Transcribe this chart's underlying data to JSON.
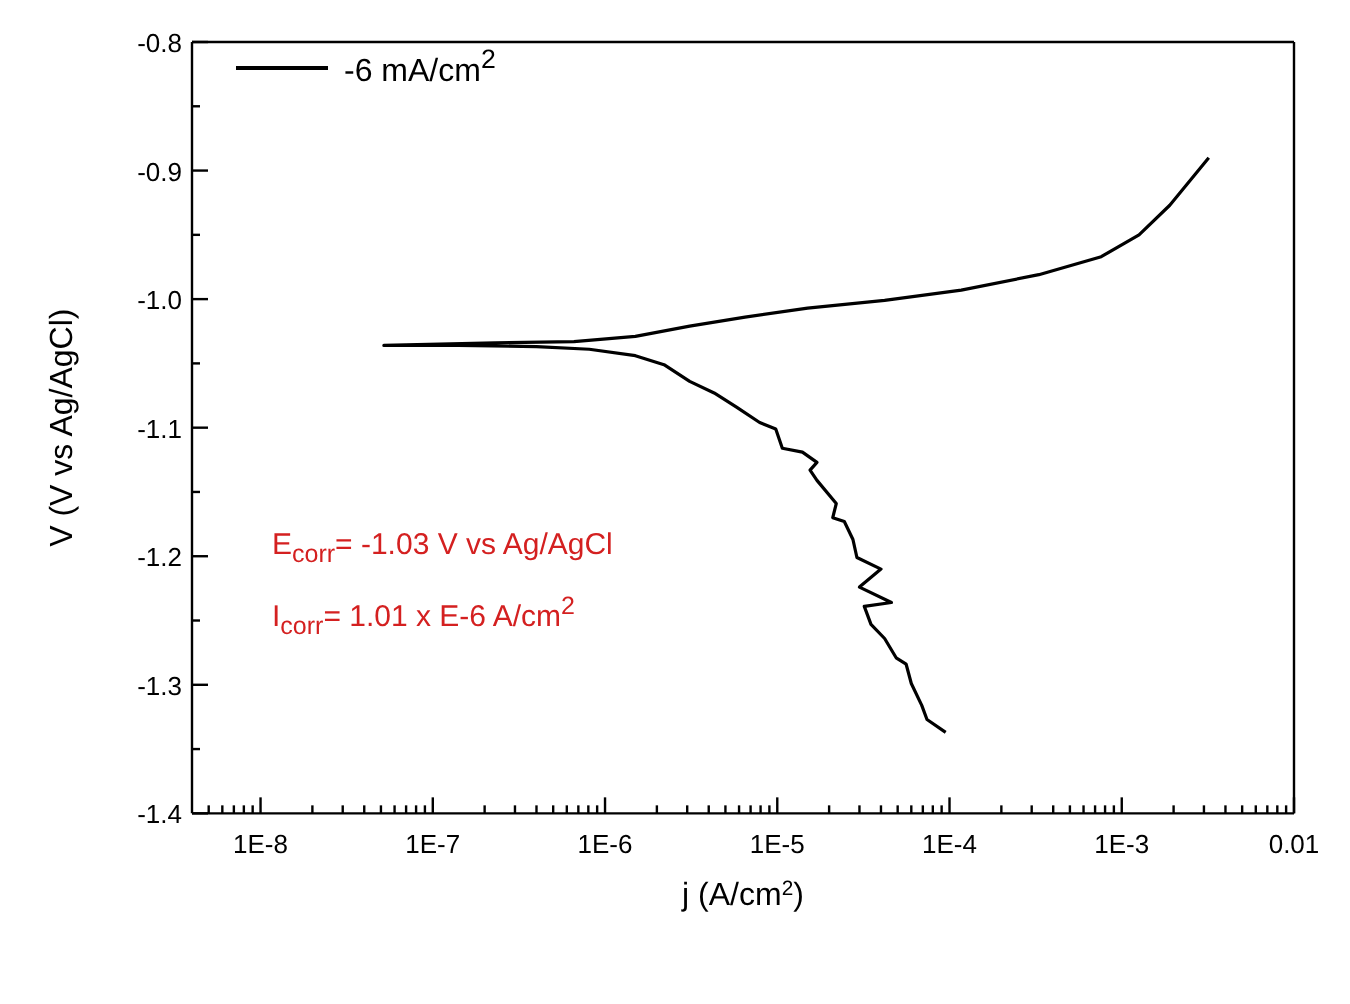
{
  "chart_data": {
    "type": "line",
    "xlabel": "j (A/cm$^{2}$)",
    "ylabel": "V (V vs Ag/AgCl)",
    "log": "x",
    "legend": "top left",
    "marker": "none",
    "line_style": "solid",
    "grid": false,
    "xlim": [
      4e-09,
      0.01
    ],
    "xticks": [
      {
        "value": 5e-09,
        "label": null
      },
      {
        "value": 6e-09,
        "label": null
      },
      {
        "value": 7e-09,
        "label": null
      },
      {
        "value": 8e-09,
        "label": null
      },
      {
        "value": 9e-09,
        "label": null
      },
      {
        "value": 1e-08,
        "label": "1E-8"
      },
      {
        "value": 2e-08,
        "label": null
      },
      {
        "value": 3e-08,
        "label": null
      },
      {
        "value": 4e-08,
        "label": null
      },
      {
        "value": 5e-08,
        "label": null
      },
      {
        "value": 6e-08,
        "label": null
      },
      {
        "value": 7e-08,
        "label": null
      },
      {
        "value": 8e-08,
        "label": null
      },
      {
        "value": 9e-08,
        "label": null
      },
      {
        "value": 1e-07,
        "label": "1E-7"
      },
      {
        "value": 2e-07,
        "label": null
      },
      {
        "value": 3e-07,
        "label": null
      },
      {
        "value": 4e-07,
        "label": null
      },
      {
        "value": 5e-07,
        "label": null
      },
      {
        "value": 6e-07,
        "label": null
      },
      {
        "value": 7e-07,
        "label": null
      },
      {
        "value": 8e-07,
        "label": null
      },
      {
        "value": 9e-07,
        "label": null
      },
      {
        "value": 1e-06,
        "label": "1E-6"
      },
      {
        "value": 2e-06,
        "label": null
      },
      {
        "value": 3e-06,
        "label": null
      },
      {
        "value": 4e-06,
        "label": null
      },
      {
        "value": 5e-06,
        "label": null
      },
      {
        "value": 6e-06,
        "label": null
      },
      {
        "value": 7e-06,
        "label": null
      },
      {
        "value": 8e-06,
        "label": null
      },
      {
        "value": 9e-06,
        "label": null
      },
      {
        "value": 1e-05,
        "label": "1E-5"
      },
      {
        "value": 2e-05,
        "label": null
      },
      {
        "value": 3e-05,
        "label": null
      },
      {
        "value": 4e-05,
        "label": null
      },
      {
        "value": 5e-05,
        "label": null
      },
      {
        "value": 6e-05,
        "label": null
      },
      {
        "value": 7e-05,
        "label": null
      },
      {
        "value": 8e-05,
        "label": null
      },
      {
        "value": 9e-05,
        "label": null
      },
      {
        "value": 0.0001,
        "label": "1E-4"
      },
      {
        "value": 0.0002,
        "label": null
      },
      {
        "value": 0.0003,
        "label": null
      },
      {
        "value": 0.0004,
        "label": null
      },
      {
        "value": 0.0005,
        "label": null
      },
      {
        "value": 0.0006,
        "label": null
      },
      {
        "value": 0.0007,
        "label": null
      },
      {
        "value": 0.0008,
        "label": null
      },
      {
        "value": 0.0009,
        "label": null
      },
      {
        "value": 0.001,
        "label": "1E-3"
      },
      {
        "value": 0.002,
        "label": null
      },
      {
        "value": 0.003,
        "label": null
      },
      {
        "value": 0.004,
        "label": null
      },
      {
        "value": 0.005,
        "label": null
      },
      {
        "value": 0.006,
        "label": null
      },
      {
        "value": 0.007,
        "label": null
      },
      {
        "value": 0.008,
        "label": null
      },
      {
        "value": 0.009,
        "label": null
      },
      0.01
    ],
    "ylim": [
      -1.4,
      -0.8
    ],
    "yticks": [
      -1.4,
      {
        "value": -1.35,
        "label": null
      },
      -1.3,
      {
        "value": -1.25,
        "label": null
      },
      -1.2,
      {
        "value": -1.15,
        "label": null
      },
      -1.1,
      {
        "value": -1.05,
        "label": null
      },
      {
        "value": -1.0,
        "label": "-1.0"
      },
      {
        "value": -0.95,
        "label": null
      },
      -0.9,
      {
        "value": -0.85,
        "label": null
      },
      -0.8
    ],
    "annotations": [
      "E$_{corr}$= -1.03 V vs Ag/AgCl",
      "I$_{corr}$= 1.01 x E-6 A/cm$^{2}$"
    ],
    "series": [
      {
        "name": "-6 mA/cm$^{2}$",
        "color": "#000000",
        "x": [
          9.5e-05,
          7.4e-05,
          6.9e-05,
          6e-05,
          5.6e-05,
          4.9e-05,
          4.2e-05,
          3.5e-05,
          3.2e-05,
          4.6e-05,
          3e-05,
          4e-05,
          2.9e-05,
          2.75e-05,
          2.45e-05,
          2.1e-05,
          2.2e-05,
          1.7e-05,
          1.55e-05,
          1.7e-05,
          1.4e-05,
          1.07e-05,
          9.8e-06,
          7.9e-06,
          5.8e-06,
          4.3e-06,
          3.1e-06,
          2.2e-06,
          1.5e-06,
          8.1e-07,
          4e-07,
          1.4e-07,
          5.2e-08,
          2.3e-07,
          6.6e-07,
          1.5e-06,
          3.1e-06,
          6.5e-06,
          1.5e-05,
          4.2e-05,
          0.000117,
          0.00033,
          0.00076,
          0.00126,
          0.0019,
          0.0032
        ],
        "values": [
          -1.337,
          -1.327,
          -1.316,
          -1.299,
          -1.284,
          -1.279,
          -1.264,
          -1.253,
          -1.239,
          -1.236,
          -1.224,
          -1.21,
          -1.201,
          -1.187,
          -1.173,
          -1.17,
          -1.159,
          -1.141,
          -1.133,
          -1.127,
          -1.119,
          -1.116,
          -1.101,
          -1.096,
          -1.084,
          -1.073,
          -1.064,
          -1.051,
          -1.044,
          -1.039,
          -1.037,
          -1.036,
          -1.036,
          -1.034,
          -1.033,
          -1.029,
          -1.021,
          -1.014,
          -1.007,
          -1.001,
          -0.993,
          -0.981,
          -0.967,
          -0.95,
          -0.927,
          -0.89
        ]
      }
    ]
  }
}
